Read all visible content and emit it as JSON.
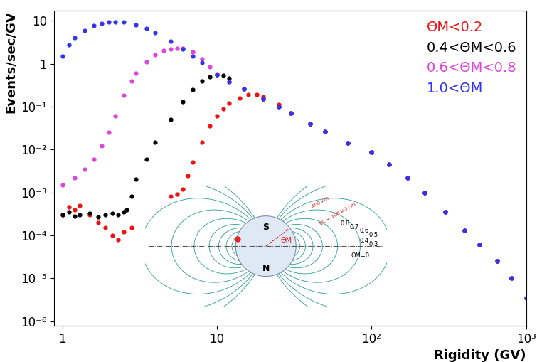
{
  "chart_data": {
    "type": "scatter",
    "x_label": "Rigidity (GV)",
    "y_label": "Events/sec/GV",
    "log": true,
    "grid": false,
    "legend": "upper right",
    "marker": "o",
    "xlim": [
      0.88,
      1000
    ],
    "ylim": [
      7.8e-07,
      17
    ],
    "xticks": [
      1,
      10,
      {
        "value": 100,
        "label": "10²"
      },
      {
        "value": 1000,
        "label": "10³"
      }
    ],
    "yticks": [
      {
        "value": 1e-06,
        "label": "10⁻⁶"
      },
      {
        "value": 1e-05,
        "label": "10⁻⁵"
      },
      {
        "value": 0.0001,
        "label": "10⁻⁴"
      },
      {
        "value": 0.001,
        "label": "10⁻³"
      },
      {
        "value": 0.01,
        "label": "10⁻²"
      },
      {
        "value": 0.1,
        "label": "10⁻¹"
      },
      1,
      10
    ],
    "series": [
      {
        "name": "ΘM<0.2",
        "color": "#ee1111",
        "x": [
          1,
          1.1,
          1.2,
          1.3,
          1.5,
          1.7,
          1.9,
          2.1,
          2.3,
          2.5,
          2.8,
          5,
          5.5,
          6,
          6.5,
          7,
          8,
          9,
          10,
          11,
          12,
          14,
          16,
          18,
          20,
          25,
          30,
          40,
          50,
          70,
          100,
          130,
          170,
          220,
          300,
          400,
          500,
          650,
          800,
          1000
        ],
        "values": [
          0.0003,
          0.00045,
          0.0004,
          0.0005,
          0.0003,
          0.0002,
          0.00015,
          0.0001,
          8e-05,
          0.00012,
          0.00015,
          0.0008,
          0.0009,
          0.0012,
          0.0025,
          0.005,
          0.015,
          0.035,
          0.06,
          0.09,
          0.12,
          0.16,
          0.19,
          0.19,
          0.17,
          0.11,
          0.07,
          0.04,
          0.026,
          0.014,
          0.0085,
          0.0045,
          0.0022,
          0.001,
          0.00035,
          0.00013,
          6e-05,
          2.5e-05,
          1e-05,
          3.5e-06
        ]
      },
      {
        "name": "0.4<ΘM<0.6",
        "color": "#000000",
        "x": [
          1,
          1.1,
          1.2,
          1.3,
          1.5,
          1.7,
          1.9,
          2.1,
          2.3,
          2.5,
          2.6,
          2.8,
          3,
          3.5,
          4,
          5,
          6,
          7,
          8,
          9,
          10,
          11,
          12,
          15,
          20,
          25,
          30,
          40,
          50,
          70,
          100,
          130,
          170,
          220,
          300,
          400,
          500,
          650,
          800,
          1000
        ],
        "values": [
          0.0003,
          0.00035,
          0.00028,
          0.0003,
          0.00032,
          0.00027,
          0.0003,
          0.00033,
          0.0003,
          0.00035,
          0.0004,
          0.0008,
          0.002,
          0.006,
          0.015,
          0.05,
          0.13,
          0.25,
          0.4,
          0.5,
          0.55,
          0.54,
          0.45,
          0.26,
          0.15,
          0.1,
          0.07,
          0.04,
          0.026,
          0.014,
          0.0085,
          0.0045,
          0.0022,
          0.001,
          0.00035,
          0.00013,
          6e-05,
          2.5e-05,
          1e-05,
          3.5e-06
        ]
      },
      {
        "name": "0.6<ΘM<0.8",
        "color": "#dd44dd",
        "x": [
          1,
          1.2,
          1.4,
          1.6,
          1.8,
          2,
          2.2,
          2.5,
          2.8,
          3,
          3.5,
          4,
          4.5,
          5,
          5.5,
          6,
          7,
          8,
          9,
          10,
          12,
          15,
          20,
          25,
          30,
          40,
          50,
          70,
          100,
          130,
          170,
          220,
          300,
          400,
          500,
          650,
          800,
          1000
        ],
        "values": [
          0.0015,
          0.0022,
          0.0035,
          0.006,
          0.012,
          0.025,
          0.06,
          0.18,
          0.4,
          0.6,
          1.1,
          1.6,
          2.0,
          2.2,
          2.3,
          2.25,
          1.9,
          1.3,
          0.85,
          0.58,
          0.38,
          0.26,
          0.15,
          0.1,
          0.07,
          0.04,
          0.026,
          0.014,
          0.0085,
          0.0045,
          0.0022,
          0.001,
          0.00035,
          0.00013,
          6e-05,
          2.5e-05,
          1e-05,
          3.5e-06
        ]
      },
      {
        "name": "1.0<ΘM",
        "color": "#3333ee",
        "x": [
          1,
          1.1,
          1.2,
          1.4,
          1.6,
          1.8,
          2,
          2.2,
          2.5,
          3,
          3.5,
          4,
          5,
          6,
          7,
          8,
          10,
          12,
          15,
          20,
          25,
          30,
          40,
          50,
          70,
          100,
          130,
          170,
          220,
          300,
          400,
          500,
          650,
          800,
          1000
        ],
        "values": [
          1.5,
          2.8,
          4,
          6,
          7.8,
          8.8,
          9.3,
          9.5,
          9.2,
          8,
          6.5,
          5.2,
          3.3,
          2.2,
          1.5,
          1.05,
          0.55,
          0.38,
          0.26,
          0.15,
          0.1,
          0.07,
          0.04,
          0.026,
          0.014,
          0.0085,
          0.0045,
          0.0022,
          0.001,
          0.00035,
          0.00013,
          6e-05,
          2.5e-05,
          1e-05,
          3.5e-06
        ]
      }
    ],
    "annotations": [
      "S",
      "N",
      "ΘM",
      "400 km",
      "BL = 100 kG·cm",
      "0.8",
      "0.7",
      "0.6",
      "0.5",
      "0.4",
      "0.3",
      "ΘM=0"
    ]
  }
}
